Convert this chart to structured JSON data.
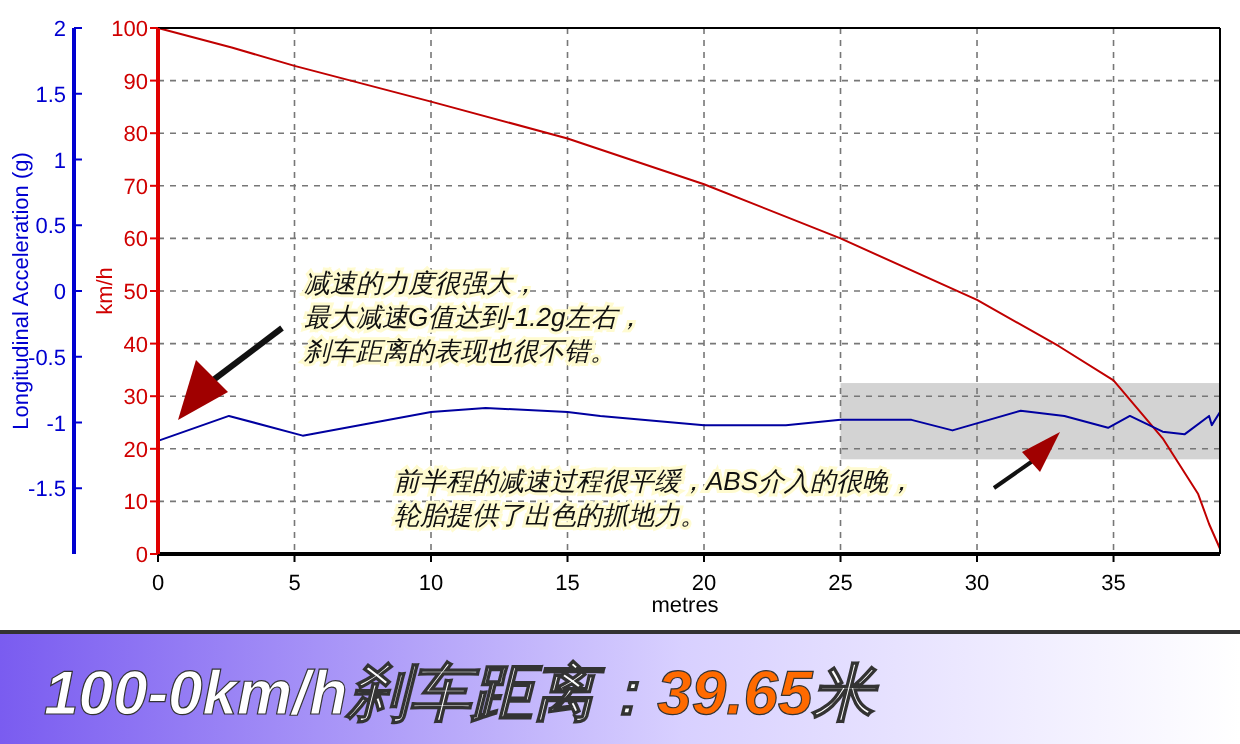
{
  "chart_data": {
    "type": "line",
    "title": "100-0km/h刹车距离：39.65米",
    "xlabel": "metres",
    "ylabel": "km/h",
    "y2label": "Longitudinal Acceleration (g)",
    "xlim": [
      0,
      38.9
    ],
    "xticks": [
      0,
      5,
      10,
      15,
      20,
      25,
      30,
      35
    ],
    "ylim": [
      0,
      100
    ],
    "yticks": [
      0,
      10,
      20,
      30,
      40,
      50,
      60,
      70,
      80,
      90,
      100
    ],
    "y2lim": [
      -2,
      2
    ],
    "y2ticks": [
      -1.5,
      -1,
      -0.5,
      0,
      0.5,
      1,
      1.5,
      2
    ],
    "grid": true,
    "series": [
      {
        "color": "#c00000",
        "x": [
          0,
          2.7,
          5,
          10,
          15,
          20,
          25,
          30,
          33,
          35,
          36.8,
          38.1,
          38.5,
          38.9
        ],
        "values": [
          100,
          96.3,
          92.8,
          86,
          79,
          70.3,
          60,
          48.3,
          39.5,
          33,
          22,
          11.4,
          5.7,
          1
        ]
      },
      {
        "color": "#0000a0",
        "axis": "y2",
        "x": [
          0,
          2.6,
          5.3,
          10,
          12,
          15,
          16.2,
          20,
          23,
          25,
          27.6,
          29.1,
          31.6,
          33.2,
          34.8,
          35.6,
          36.8,
          37.6,
          38.5,
          38.6,
          38.9
        ],
        "values": [
          -1.14,
          -0.95,
          -1.1,
          -0.92,
          -0.89,
          -0.92,
          -0.95,
          -1.02,
          -1.02,
          -0.98,
          -0.98,
          -1.06,
          -0.91,
          -0.95,
          -1.04,
          -0.95,
          -1.07,
          -1.09,
          -0.95,
          -1.02,
          -0.92
        ]
      }
    ],
    "bands": [
      {
        "axis": "x",
        "from": 25,
        "to": 38.9,
        "color": "#d3d3d3"
      }
    ],
    "annotations": [
      "减速的力度很强大，最大减速G值达到-1.2g左右，刹车距离的表现也很不错。",
      "前半程的减速过程很平缓，ABS介入的很晚，轮胎提供了出色的抓地力。"
    ]
  }
}
